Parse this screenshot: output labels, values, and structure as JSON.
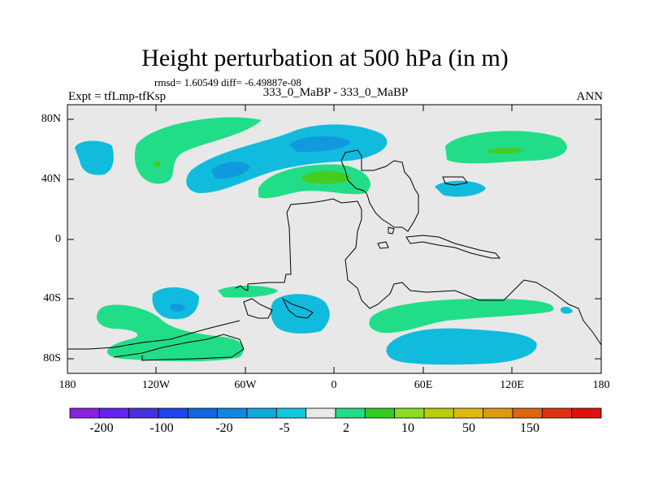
{
  "title": "Height perturbation at 500 hPa (in m)",
  "stats": "rmsd= 1.60549 diff= -6.49887e-08",
  "expt": "Expt = tfLmp-tfKsp",
  "case_names": "333_0_MaBP - 333_0_MaBP",
  "season": "ANN",
  "map": {
    "lon_range": [
      -180,
      180
    ],
    "lat_range": [
      -90,
      90
    ],
    "lat_ticks": [
      {
        "value": 80,
        "label": "80N"
      },
      {
        "value": 40,
        "label": "40N"
      },
      {
        "value": 0,
        "label": "0"
      },
      {
        "value": -40,
        "label": "40S"
      },
      {
        "value": -80,
        "label": "80S"
      }
    ],
    "lon_ticks": [
      {
        "value": -180,
        "label": "180"
      },
      {
        "value": -120,
        "label": "120W"
      },
      {
        "value": -60,
        "label": "60W"
      },
      {
        "value": 0,
        "label": "0"
      },
      {
        "value": 60,
        "label": "60E"
      },
      {
        "value": 120,
        "label": "120E"
      },
      {
        "value": 180,
        "label": "180"
      }
    ],
    "colors": {
      "background": "#e8e8e8",
      "pos_weak": "#22dd88",
      "pos_mid": "#44cc22",
      "neg_weak": "#11bbdd",
      "neg_mid": "#1199dd",
      "coast": "#000000"
    }
  },
  "colorbar": {
    "colors": [
      "#8822dd",
      "#6622ee",
      "#4433dd",
      "#2244ee",
      "#1166dd",
      "#1188dd",
      "#11aadd",
      "#11c6dd",
      "#e8e8e8",
      "#22dd88",
      "#33cc22",
      "#88dd22",
      "#bbcc11",
      "#ddbb11",
      "#dd9911",
      "#dd6611",
      "#dd3311",
      "#dd1111"
    ],
    "labels": [
      "-200",
      "-100",
      "-20",
      "-5",
      "2",
      "10",
      "50",
      "150"
    ]
  }
}
